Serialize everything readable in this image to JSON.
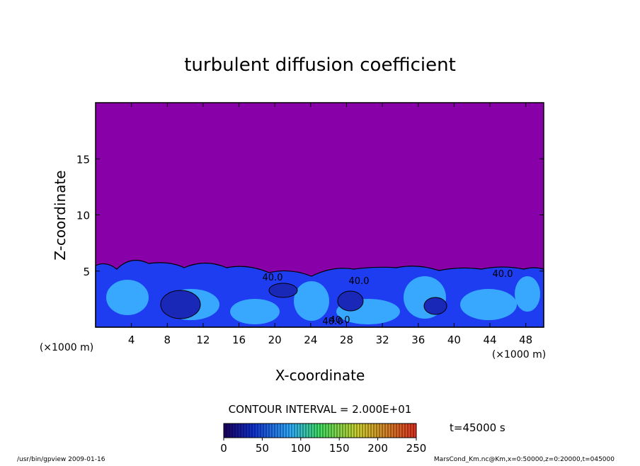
{
  "chart_data": {
    "type": "contour",
    "title": "turbulent diffusion coefficient",
    "xlabel": "X-coordinate",
    "ylabel": "Z-coordinate",
    "xunit": "(×1000 m)",
    "yunit": "(×1000 m)",
    "xlim": [
      0,
      50
    ],
    "ylim": [
      0,
      20
    ],
    "xticks": [
      4,
      8,
      12,
      16,
      20,
      24,
      28,
      32,
      36,
      40,
      44,
      48
    ],
    "yticks": [
      5,
      10,
      15
    ],
    "contour_interval": "CONTOUR INTERVAL = 2.000E+01",
    "contour_labels": [
      "40.0",
      "40.0",
      "40.0",
      "40.0",
      "40.0"
    ],
    "colorbar": {
      "lim": [
        0,
        250
      ],
      "ticks": [
        0,
        50,
        100,
        150,
        200,
        250
      ]
    },
    "time_label": "t=45000 s",
    "footer_left": "/usr/bin/gpview   2009-01-16",
    "footer_right": "MarsCond_Km.nc@Km,x=0:50000,z=0:20000,t=045000"
  }
}
